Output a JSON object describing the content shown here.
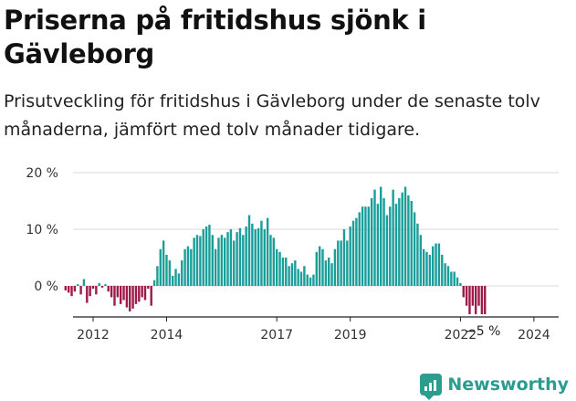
{
  "title": "Priserna på fritidshus sjönk i Gävleborg",
  "subtitle": "Prisutveckling för fritidshus i Gävleborg under de senaste tolv månaderna, jämfört med tolv månader tidigare.",
  "brand": {
    "name": "Newsworthy",
    "icon": "newsworthy-logo-icon",
    "color": "#2a9d8f"
  },
  "chart_data": {
    "type": "bar",
    "title": "Priserna på fritidshus sjönk i Gävleborg",
    "xlabel": "",
    "ylabel": "",
    "ylim": [
      -6,
      20
    ],
    "yticks": [
      0,
      10,
      20
    ],
    "ytick_labels": [
      "0 %",
      "10 %",
      "20 %"
    ],
    "xtick_labels": [
      "2012",
      "2014",
      "2017",
      "2019",
      "2022",
      "2024"
    ],
    "xticks": [
      2012,
      2014,
      2017,
      2019,
      2022,
      2024
    ],
    "x_start": 2011.25,
    "x_step": 0.0833333,
    "positive_color": "#1a9e99",
    "negative_color": "#9e1a4a",
    "grid": true,
    "annotation": {
      "label": "−5 %",
      "value": -5
    },
    "values": [
      -0.8,
      -1.2,
      -1.8,
      -1.0,
      0.3,
      -1.5,
      1.2,
      -3.0,
      -1.8,
      -0.5,
      -1.5,
      0.5,
      -0.3,
      0.3,
      -1.0,
      -2.0,
      -3.5,
      -2.0,
      -3.2,
      -2.5,
      -3.8,
      -4.5,
      -4.0,
      -3.2,
      -2.8,
      -2.0,
      -2.5,
      -0.5,
      -3.5,
      1.0,
      3.5,
      6.5,
      8.0,
      5.5,
      4.5,
      1.8,
      3.0,
      2.2,
      4.5,
      6.5,
      7.0,
      6.5,
      8.5,
      9.0,
      8.8,
      10.0,
      10.5,
      10.8,
      9.0,
      6.5,
      8.5,
      9.0,
      8.5,
      9.5,
      10.0,
      8.0,
      9.5,
      10.2,
      9.0,
      10.5,
      12.5,
      11.0,
      10.0,
      10.2,
      11.5,
      10.0,
      12.0,
      9.0,
      8.5,
      6.5,
      6.0,
      5.0,
      5.0,
      3.5,
      4.0,
      4.5,
      3.0,
      2.5,
      3.5,
      2.0,
      1.5,
      2.0,
      6.0,
      7.0,
      6.5,
      4.5,
      5.0,
      4.0,
      6.5,
      8.0,
      8.0,
      10.0,
      8.0,
      10.5,
      11.5,
      12.0,
      13.0,
      14.0,
      14.0,
      14.0,
      15.5,
      17.0,
      14.5,
      17.5,
      15.5,
      12.5,
      14.0,
      17.0,
      14.5,
      15.5,
      16.5,
      17.5,
      16.0,
      15.0,
      13.0,
      11.0,
      9.0,
      6.5,
      6.0,
      5.5,
      7.0,
      7.5,
      7.5,
      5.5,
      4.0,
      3.5,
      2.5,
      2.5,
      1.5,
      0.5,
      -2.0,
      -3.5,
      -5.0,
      -3.5,
      -5.0,
      -3.5,
      -5.0,
      -5.0
    ]
  }
}
